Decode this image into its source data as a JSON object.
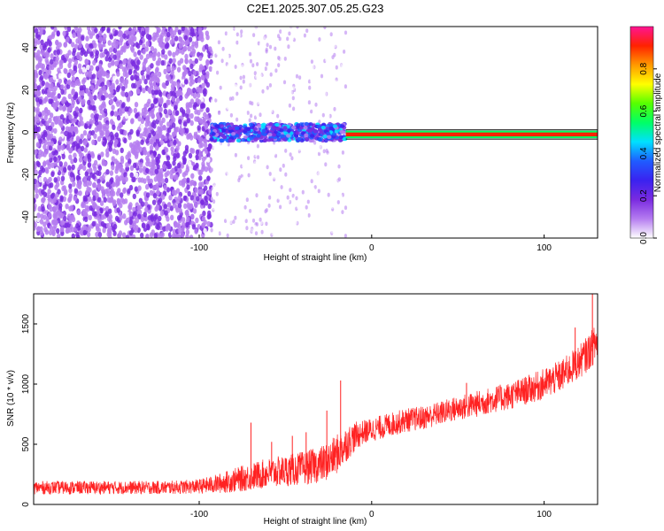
{
  "figure": {
    "title": "C2E1.2025.307.05.25.G23"
  },
  "chart_data": [
    {
      "type": "heatmap",
      "xlabel": "Height of straight line (km)",
      "ylabel": "Frequency (Hz)",
      "xlim": [
        -196,
        131
      ],
      "ylim": [
        -50,
        50
      ],
      "x_ticks": [
        -100,
        0,
        100
      ],
      "y_ticks": [
        -40,
        -20,
        0,
        20,
        40
      ],
      "colorbar": {
        "label": "Normalized spectral amplitude",
        "range": [
          0,
          1
        ],
        "ticks": [
          0.0,
          0.2,
          0.4,
          0.6,
          0.8
        ],
        "tick_labels": [
          "0.0",
          "0.2",
          "0.4",
          "0.6",
          "0.8"
        ],
        "colors": [
          "#ffffff",
          "#b57cf0",
          "#7a2be0",
          "#3a22f0",
          "#1f5cff",
          "#00e0ff",
          "#00ff66",
          "#55ff00",
          "#ffff00",
          "#ff9900",
          "#ff2200",
          "#ff1493"
        ]
      },
      "regions": [
        {
          "x_range": [
            -196,
            -93
          ],
          "f_range": [
            -50,
            50
          ],
          "amplitude": 0.1,
          "pattern": "dense noise"
        },
        {
          "x_range": [
            -93,
            -15
          ],
          "f_range": [
            -50,
            50
          ],
          "amplitude": 0.03,
          "pattern": "sparse noise"
        },
        {
          "x_range": [
            -93,
            -15
          ],
          "f_range": [
            -4,
            4
          ],
          "amplitude": 0.25,
          "pattern": "scattered signal"
        },
        {
          "x_range": [
            -15,
            131
          ],
          "f_range": [
            -1.5,
            -0.5
          ],
          "amplitude": 0.95,
          "pattern": "steady carrier line"
        }
      ]
    },
    {
      "type": "line",
      "xlabel": "Height of straight line (km)",
      "ylabel": "SNR (10 * v/v)",
      "xlim": [
        -196,
        131
      ],
      "ylim": [
        0,
        1750
      ],
      "x_ticks": [
        -100,
        0,
        100
      ],
      "y_ticks": [
        0,
        500,
        1000,
        1500
      ],
      "series": [
        {
          "color": "#ff2222",
          "x": [
            -196,
            -180,
            -160,
            -140,
            -120,
            -100,
            -90,
            -80,
            -70,
            -60,
            -50,
            -40,
            -30,
            -25,
            -20,
            -15,
            -10,
            -5,
            0,
            10,
            20,
            30,
            40,
            50,
            60,
            70,
            80,
            90,
            100,
            110,
            120,
            125,
            131
          ],
          "y": [
            140,
            140,
            140,
            140,
            140,
            150,
            170,
            200,
            230,
            260,
            280,
            300,
            330,
            360,
            420,
            500,
            560,
            600,
            620,
            660,
            700,
            720,
            760,
            800,
            830,
            870,
            900,
            950,
            1000,
            1070,
            1180,
            1250,
            1360
          ],
          "band": [
            110,
            110,
            110,
            110,
            110,
            120,
            160,
            200,
            230,
            250,
            260,
            280,
            300,
            320,
            330,
            300,
            250,
            200,
            200,
            200,
            200,
            200,
            200,
            210,
            220,
            220,
            230,
            240,
            260,
            270,
            280,
            300,
            320
          ],
          "spikes": [
            {
              "x": -70,
              "y": 680
            },
            {
              "x": -58,
              "y": 520
            },
            {
              "x": -46,
              "y": 570
            },
            {
              "x": -38,
              "y": 600
            },
            {
              "x": -26,
              "y": 780
            },
            {
              "x": -18,
              "y": 1030
            },
            {
              "x": 55,
              "y": 1010
            },
            {
              "x": 118,
              "y": 1470
            },
            {
              "x": 128,
              "y": 1750
            }
          ]
        }
      ]
    }
  ]
}
